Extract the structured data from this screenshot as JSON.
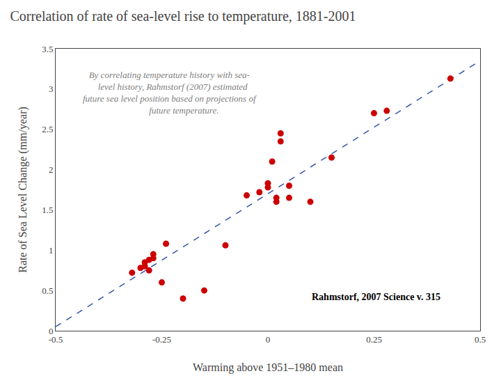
{
  "chart_data": {
    "type": "scatter",
    "title": "Correlation of rate of sea-level rise to temperature, 1881-2001",
    "xlabel": "Warming above 1951–1980 mean",
    "ylabel": "Rate of Sea Level Change (mm/year)",
    "annotations": [
      "By correlating temperature history with sea-\n   level history, Rahmstorf (2007) estimated\nfuture sea level position based on projections of\n             future temperature.",
      "Rahmstorf, 2007 Science v. 315"
    ],
    "xlim": [
      -0.5,
      0.5
    ],
    "ylim": [
      0,
      3.5
    ],
    "xticks": [
      -0.5,
      -0.25,
      0,
      0.25,
      0.5
    ],
    "yticks": [
      0,
      0.5,
      1,
      1.5,
      2,
      2.5,
      3,
      3.5
    ],
    "grid": false,
    "series": [
      {
        "type": "line",
        "color": "#3355aa",
        "line_style": "dashed",
        "x": [
          -0.5,
          0.5
        ],
        "values": [
          0.05,
          3.35
        ]
      },
      {
        "type": "scatter",
        "color": "#cc0000",
        "marker": "circle",
        "x": [
          -0.32,
          -0.3,
          -0.29,
          -0.29,
          -0.28,
          -0.28,
          -0.27,
          -0.27,
          -0.25,
          -0.24,
          -0.2,
          -0.15,
          -0.1,
          -0.05,
          -0.02,
          0.0,
          0.0,
          0.01,
          0.02,
          0.02,
          0.03,
          0.03,
          0.05,
          0.05,
          0.1,
          0.15,
          0.25,
          0.28,
          0.43
        ],
        "values": [
          0.72,
          0.78,
          0.8,
          0.85,
          0.75,
          0.88,
          0.9,
          0.95,
          0.6,
          1.08,
          0.4,
          0.5,
          1.06,
          1.68,
          1.72,
          1.78,
          1.83,
          2.1,
          1.65,
          1.6,
          2.35,
          2.45,
          1.65,
          1.8,
          1.6,
          2.15,
          2.7,
          2.73,
          3.13
        ]
      }
    ]
  }
}
